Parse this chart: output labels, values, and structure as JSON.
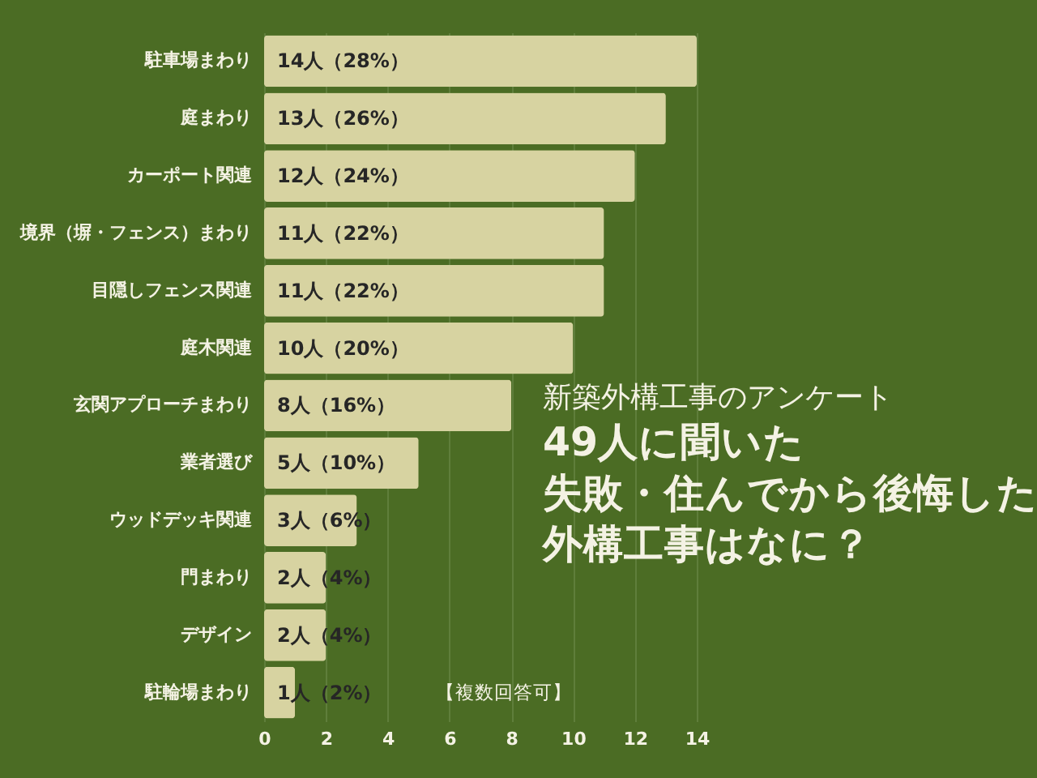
{
  "chart_data": {
    "type": "bar",
    "orientation": "horizontal",
    "subtitle": "新築外構工事のアンケート",
    "title": "49人に聞いた失敗・住んでから後悔した外構工事はなに？",
    "categories": [
      "駐車場まわり",
      "庭まわり",
      "カーポート関連",
      "境界（塀・フェンス）まわり",
      "目隠しフェンス関連",
      "庭木関連",
      "玄関アプローチまわり",
      "業者選び",
      "ウッドデッキ関連",
      "門まわり",
      "デザイン",
      "駐輪場まわり"
    ],
    "values": [
      14,
      13,
      12,
      11,
      11,
      10,
      8,
      5,
      3,
      2,
      2,
      1
    ],
    "color": "#d7d3a1",
    "value_labels": [
      "14人（28%）",
      "13人（26%）",
      "12人（24%）",
      "11人（22%）",
      "11人（22%）",
      "10人（20%）",
      "8人（16%）",
      "5人（10%）",
      "3人（6%）",
      "2人（4%）",
      "2人（4%）",
      "1人（2%）"
    ],
    "xlim": [
      0,
      14
    ],
    "xticks": [
      0,
      2,
      4,
      6,
      8,
      10,
      12,
      14
    ],
    "grid": "x",
    "annotations": [
      "【複数回答可】"
    ]
  }
}
